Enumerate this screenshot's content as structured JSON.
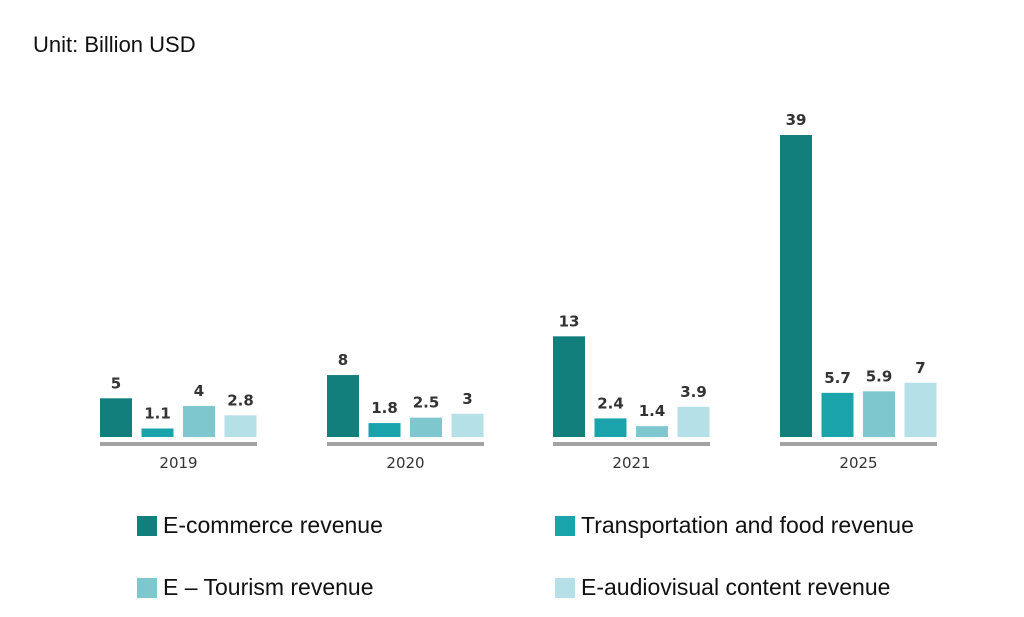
{
  "chart_data": {
    "type": "bar",
    "title": "",
    "unit_label": "Unit: Billion USD",
    "xlabel": "",
    "ylabel": "",
    "categories": [
      "2019",
      "2020",
      "2021",
      "2025"
    ],
    "series": [
      {
        "name": "E-commerce revenue",
        "color": "#127f7c",
        "values": [
          5,
          8,
          13,
          39
        ],
        "labels": [
          "5",
          "8",
          "13",
          "39"
        ]
      },
      {
        "name": "Transportation and food revenue",
        "color": "#1aa3aa",
        "values": [
          1.1,
          1.8,
          2.4,
          5.7
        ],
        "labels": [
          "1.1",
          "1.8",
          "2.4",
          "5.7"
        ]
      },
      {
        "name": "E – Tourism revenue",
        "color": "#7ec7ce",
        "values": [
          4,
          2.5,
          1.4,
          5.9
        ],
        "labels": [
          "4",
          "2.5",
          "1.4",
          "5.9"
        ]
      },
      {
        "name": "E-audiovisual content revenue",
        "color": "#b5e0e8",
        "values": [
          2.8,
          3,
          3.9,
          7
        ],
        "labels": [
          "2.8",
          "3",
          "3.9",
          "7"
        ]
      }
    ],
    "ylim": [
      0,
      39
    ],
    "grid": false,
    "legend_position": "bottom",
    "axis_color": "#a3a3a6"
  }
}
